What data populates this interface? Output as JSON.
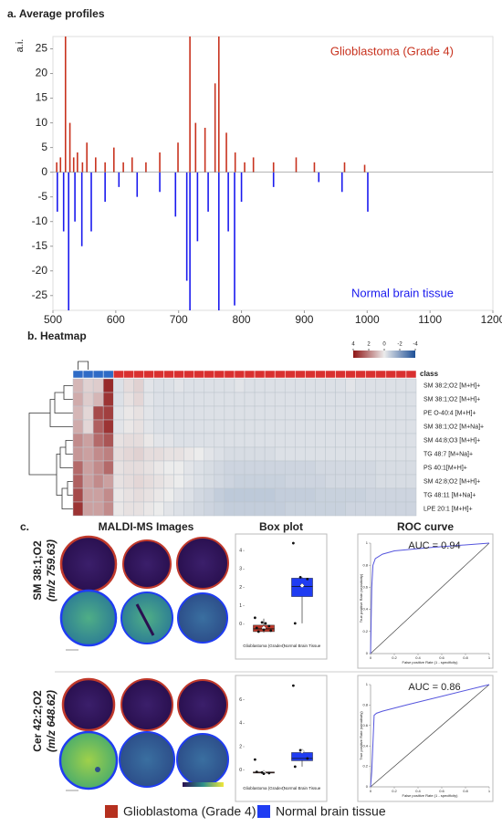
{
  "figure": {
    "panel_c_label": "c.",
    "images_title": "MALDI-MS Images",
    "row_labels": [
      [
        "SM 38:1;O2",
        "(m/z 759.63)"
      ],
      [
        "Cer 42:2;O2",
        "(m/z 648.62)"
      ]
    ],
    "legend": [
      {
        "name": "Glioblastoma (Grade 4)",
        "color": "#b5301f"
      },
      {
        "name": "Normal brain tissue",
        "color": "#1f3cf2"
      }
    ]
  },
  "chart_data": [
    {
      "type": "spectrum",
      "title": "a. Average profiles",
      "y_label": "a.i.",
      "xlim": [
        500,
        1200
      ],
      "xticks": [
        500,
        600,
        700,
        800,
        900,
        1000,
        1100,
        1200
      ],
      "ylim": [
        -28,
        27.5
      ],
      "yticks": [
        25,
        20,
        15,
        10,
        5,
        0,
        -5,
        -10,
        -15,
        -20,
        -25
      ],
      "series": [
        {
          "name": "Glioblastoma (Grade 4)",
          "color": "#c8321e",
          "x": [
            506,
            512,
            520,
            527,
            533,
            539,
            547,
            554,
            568,
            583,
            597,
            612,
            626,
            648,
            670,
            699,
            718,
            727,
            742,
            758,
            764,
            776,
            790,
            805,
            819,
            851,
            887,
            916,
            964,
            996
          ],
          "values": [
            2,
            3,
            27.5,
            10,
            3,
            4,
            2,
            6,
            3,
            2,
            5,
            2,
            3,
            2,
            4,
            6,
            27.5,
            10,
            9,
            18,
            27.5,
            8,
            4,
            2,
            3,
            2,
            3,
            2,
            2,
            1.5
          ]
        },
        {
          "name": "Normal brain tissue",
          "color": "#1a1aee",
          "x": [
            507,
            517,
            525,
            535,
            546,
            561,
            583,
            605,
            634,
            670,
            695,
            713,
            718,
            730,
            747,
            764,
            779,
            789,
            800,
            851,
            923,
            960,
            1001
          ],
          "values": [
            -8,
            -12,
            -28,
            -10,
            -15,
            -12,
            -6,
            -3,
            -5,
            -4,
            -9,
            -22,
            -28,
            -14,
            -8,
            -28,
            -12,
            -27,
            -6,
            -3,
            -2,
            -4,
            -8
          ]
        }
      ]
    },
    {
      "type": "heatmap",
      "title": "b. Heatmap",
      "class_label": "class",
      "rows": [
        "SM 38:2;O2 [M+H]+",
        "SM 38:1;O2 [M+H]+",
        "PE O-40:4 [M+H]+",
        "SM 38:1;O2 [M+Na]+",
        "SM 44:8;O3 [M+H]+",
        "TG 48:7 [M+Na]+",
        "PS 40:1[M+H]+",
        "SM 42:8;O2 [M+H]+",
        "TG 48:11 [M+Na]+",
        "LPE 20:1 [M+H]+"
      ],
      "zlim": [
        4,
        -4
      ],
      "colorbar_ticks": [
        4,
        2,
        0,
        -2,
        -4
      ],
      "colors": [
        "#8e1414",
        "#ececec",
        "#1d4f96"
      ],
      "class_colors": [
        "#2e6bc6",
        "#2e6bc6",
        "#2e6bc6",
        "#2e6bc6",
        "#d93030",
        "#d93030",
        "#d93030",
        "#d93030",
        "#d93030",
        "#d93030",
        "#d93030",
        "#d93030",
        "#d93030",
        "#d93030",
        "#d93030",
        "#d93030",
        "#d93030",
        "#d93030",
        "#d93030",
        "#d93030",
        "#d93030",
        "#d93030",
        "#d93030",
        "#d93030",
        "#d93030",
        "#d93030",
        "#d93030",
        "#d93030",
        "#d93030",
        "#d93030",
        "#d93030",
        "#d93030",
        "#d93030",
        "#d93030"
      ],
      "matrix": [
        [
          1.0,
          0.5,
          0.6,
          3.6,
          -0.3,
          0.3,
          0.5,
          -0.2,
          -0.3,
          -0.3,
          -0.2,
          -0.3,
          -0.3,
          -0.3,
          -0.3,
          -0.3,
          -0.2,
          -0.3,
          -0.3,
          -0.3,
          -0.3,
          -0.3,
          -0.3,
          -0.3,
          -0.3,
          -0.3,
          -0.3,
          -0.2,
          -0.3,
          -0.3,
          -0.3,
          -0.3,
          -0.3,
          -0.3
        ],
        [
          1.2,
          0.6,
          1.0,
          3.4,
          -0.3,
          0.2,
          0.4,
          -0.2,
          -0.3,
          -0.3,
          -0.3,
          -0.3,
          -0.3,
          -0.3,
          -0.3,
          -0.3,
          -0.3,
          -0.3,
          -0.3,
          -0.3,
          -0.3,
          -0.3,
          -0.3,
          -0.3,
          -0.3,
          -0.3,
          -0.3,
          -0.3,
          -0.3,
          -0.3,
          -0.3,
          -0.3,
          -0.3,
          -0.3
        ],
        [
          1.0,
          0.4,
          3.0,
          3.2,
          -0.2,
          0.1,
          0.2,
          -0.2,
          -0.3,
          -0.3,
          -0.3,
          -0.3,
          -0.3,
          -0.3,
          -0.3,
          -0.3,
          -0.3,
          -0.3,
          -0.3,
          -0.3,
          -0.3,
          -0.3,
          -0.3,
          -0.3,
          -0.3,
          -0.3,
          -0.3,
          -0.3,
          -0.3,
          -0.3,
          -0.3,
          -0.3,
          -0.3,
          -0.3
        ],
        [
          1.2,
          0.4,
          2.6,
          3.4,
          -0.2,
          0.1,
          0.2,
          -0.2,
          -0.3,
          -0.3,
          -0.3,
          -0.3,
          -0.3,
          -0.3,
          -0.3,
          -0.3,
          -0.3,
          -0.3,
          -0.3,
          -0.3,
          -0.3,
          -0.3,
          -0.3,
          -0.3,
          -0.3,
          -0.3,
          -0.3,
          -0.3,
          -0.3,
          -0.3,
          -0.3,
          -0.3,
          -0.3,
          -0.3
        ],
        [
          1.8,
          1.4,
          2.4,
          2.8,
          0.2,
          0.3,
          0.3,
          0.1,
          -0.2,
          -0.2,
          -0.3,
          -0.3,
          -0.3,
          -0.3,
          -0.3,
          -0.3,
          -0.3,
          -0.3,
          -0.3,
          -0.3,
          -0.3,
          -0.3,
          -0.3,
          -0.3,
          -0.3,
          -0.3,
          -0.3,
          -0.3,
          -0.3,
          -0.3,
          -0.3,
          -0.3,
          -0.3,
          -0.3
        ],
        [
          1.6,
          1.4,
          1.8,
          2.0,
          0.3,
          0.4,
          0.5,
          0.3,
          0.3,
          0.2,
          0.2,
          0.1,
          0.0,
          -0.2,
          -0.3,
          -0.4,
          -0.4,
          -0.4,
          -0.4,
          -0.4,
          -0.3,
          -0.3,
          -0.3,
          -0.3,
          -0.3,
          -0.3,
          -0.3,
          -0.3,
          -0.3,
          -0.3,
          -0.3,
          -0.3,
          -0.3,
          -0.3
        ],
        [
          2.4,
          1.4,
          1.8,
          2.4,
          0.2,
          0.3,
          0.3,
          0.2,
          0.1,
          0.0,
          0.0,
          -0.2,
          -0.3,
          -0.4,
          -0.5,
          -0.6,
          -0.6,
          -0.6,
          -0.6,
          -0.6,
          -0.6,
          -0.6,
          -0.6,
          -0.6,
          -0.5,
          -0.5,
          -0.5,
          -0.5,
          -0.5,
          -0.5,
          -0.4,
          -0.4,
          -0.4,
          -0.4
        ],
        [
          2.6,
          1.4,
          1.8,
          1.4,
          0.2,
          0.3,
          0.4,
          0.3,
          0.2,
          0.1,
          0.0,
          -0.2,
          -0.3,
          -0.4,
          -0.5,
          -0.6,
          -0.7,
          -0.7,
          -0.7,
          -0.7,
          -0.7,
          -0.6,
          -0.6,
          -0.6,
          -0.6,
          -0.5,
          -0.5,
          -0.5,
          -0.5,
          -0.5,
          -0.4,
          -0.4,
          -0.4,
          -0.4
        ],
        [
          3.0,
          1.4,
          1.4,
          1.8,
          0.1,
          0.2,
          0.3,
          0.2,
          0.1,
          0.0,
          -0.2,
          -0.3,
          -0.5,
          -0.6,
          -0.8,
          -0.9,
          -0.9,
          -0.9,
          -0.9,
          -0.9,
          -0.8,
          -0.8,
          -0.8,
          -0.8,
          -0.7,
          -0.7,
          -0.7,
          -0.7,
          -0.7,
          -0.6,
          -0.6,
          -0.6,
          -0.6,
          -0.6
        ],
        [
          3.4,
          1.4,
          1.4,
          1.8,
          0.1,
          0.2,
          0.2,
          0.1,
          0.0,
          -0.2,
          -0.3,
          -0.4,
          -0.5,
          -0.6,
          -0.7,
          -0.8,
          -0.8,
          -0.8,
          -0.8,
          -0.8,
          -0.8,
          -0.7,
          -0.7,
          -0.7,
          -0.7,
          -0.7,
          -0.7,
          -0.6,
          -0.6,
          -0.6,
          -0.6,
          -0.6,
          -0.6,
          -0.6
        ]
      ]
    },
    {
      "type": "box",
      "title": "Box plot",
      "categories": [
        "Glioblastoma (Grade4)",
        "Normal Brain Tissue"
      ],
      "colors": [
        "#c0392b",
        "#1f3cf2"
      ],
      "ylim": [
        -0.7,
        4.6
      ],
      "yticks": [
        0,
        1,
        2,
        3,
        4
      ],
      "boxes": [
        {
          "min": -0.45,
          "q1": -0.4,
          "median": -0.25,
          "q3": -0.05,
          "max": 0.3,
          "mean": -0.2,
          "points": [
            0.35,
            0.1,
            -0.1,
            -0.2,
            -0.3,
            -0.35,
            -0.4,
            0.05
          ]
        },
        {
          "min": 0.05,
          "q1": 1.5,
          "median": 2.05,
          "q3": 2.5,
          "max": 2.55,
          "mean": 2.1,
          "points": [
            4.4,
            2.55,
            2.45,
            0.05
          ]
        }
      ]
    },
    {
      "type": "line",
      "title": "ROC curve",
      "annotation": "AUC = 0.94",
      "color": "#5555dd",
      "x_label": "False positive Rate (1 - specificity)",
      "y_label": "True positive Rate (sensitivity)",
      "x": [
        0,
        0.005,
        0.01,
        0.02,
        0.04,
        0.1,
        0.2,
        0.5,
        1
      ],
      "values": [
        0,
        0.3,
        0.6,
        0.8,
        0.86,
        0.9,
        0.93,
        0.96,
        1
      ],
      "xlim": [
        0,
        1
      ],
      "ylim": [
        0,
        1
      ],
      "xticks": [
        0,
        0.2,
        0.4,
        0.6,
        0.8,
        1
      ],
      "yticks": [
        0,
        0.2,
        0.4,
        0.6,
        0.8,
        1
      ]
    },
    {
      "type": "box",
      "categories": [
        "Glioblastoma (Grade4)",
        "Normal Brain Tissue"
      ],
      "colors": [
        "#c0392b",
        "#1f3cf2"
      ],
      "ylim": [
        -0.8,
        7.6
      ],
      "yticks": [
        0,
        2,
        4,
        6
      ],
      "boxes": [
        {
          "min": -0.3,
          "q1": -0.25,
          "median": -0.2,
          "q3": -0.15,
          "max": -0.1,
          "mean": -0.2,
          "points": [
            0.9,
            -0.2,
            -0.25,
            -0.15,
            -0.3
          ]
        },
        {
          "min": 0.3,
          "q1": 0.8,
          "median": 1.0,
          "q3": 1.5,
          "max": 1.5,
          "mean": 1.6,
          "points": [
            7.2,
            1.7,
            1.0,
            0.3
          ]
        }
      ]
    },
    {
      "type": "line",
      "annotation": "AUC = 0.86",
      "color": "#5555dd",
      "x_label": "False positive Rate (1 - specificity)",
      "y_label": "True positive Rate (sensitivity)",
      "x": [
        0,
        0.01,
        0.03,
        0.05,
        0.1,
        0.3,
        1
      ],
      "values": [
        0,
        0.15,
        0.7,
        0.72,
        0.74,
        0.8,
        1
      ],
      "xlim": [
        0,
        1
      ],
      "ylim": [
        0,
        1
      ],
      "xticks": [
        0,
        0.2,
        0.4,
        0.6,
        0.8,
        1
      ],
      "yticks": [
        0,
        0.2,
        0.4,
        0.6,
        0.8,
        1
      ]
    }
  ]
}
